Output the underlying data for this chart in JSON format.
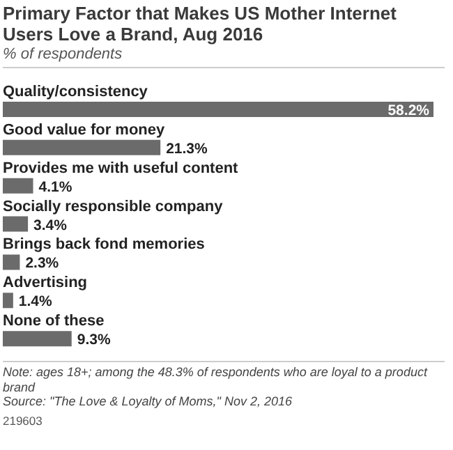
{
  "chart_data": {
    "type": "bar",
    "orientation": "horizontal",
    "title": "Primary Factor that Makes US Mother Internet Users Love a Brand, Aug 2016",
    "subtitle": "% of respondents",
    "categories": [
      "Quality/consistency",
      "Good value for money",
      "Provides me with useful content",
      "Socially responsible company",
      "Brings back fond memories",
      "Advertising",
      "None of these"
    ],
    "values": [
      58.2,
      21.3,
      4.1,
      3.4,
      2.3,
      1.4,
      9.3
    ],
    "value_labels": [
      "58.2%",
      "21.3%",
      "4.1%",
      "3.4%",
      "2.3%",
      "1.4%",
      "9.3%"
    ],
    "color": "#6b6b6b",
    "annotations": [
      "Note: ages 18+; among the 48.3% of respondents who are loyal to a product brand",
      "Source: \"The Love & Loyalty of Moms,\" Nov 2, 2016",
      "219603"
    ]
  }
}
